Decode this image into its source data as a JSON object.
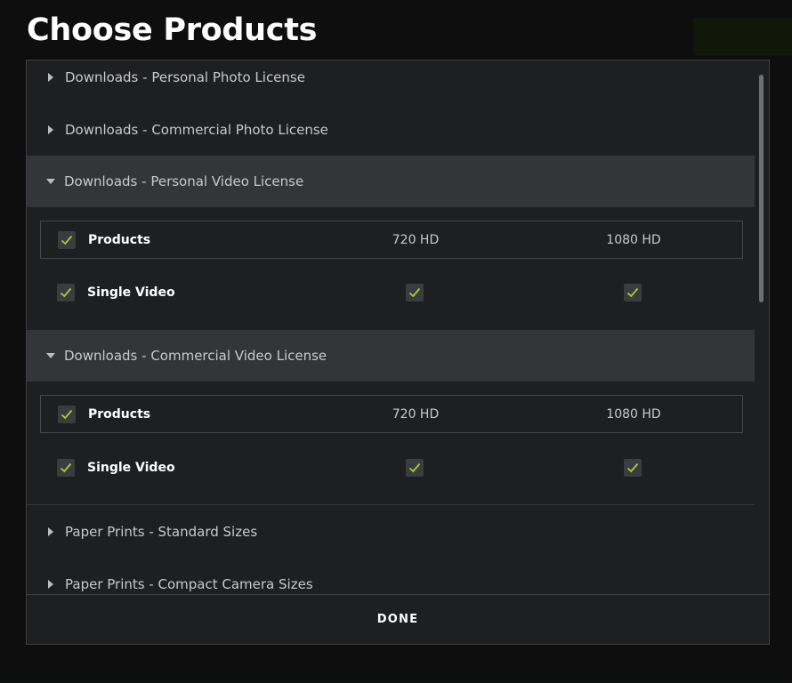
{
  "modal": {
    "title": "Choose Products",
    "done_label": "DONE"
  },
  "sections": [
    {
      "label": "Downloads - Personal Photo License",
      "expanded": false
    },
    {
      "label": "Downloads - Commercial Photo License",
      "expanded": false
    },
    {
      "label": "Downloads - Personal Video License",
      "expanded": true,
      "table": {
        "header": {
          "label": "Products",
          "col1": "720 HD",
          "col2": "1080 HD",
          "checked": true
        },
        "rows": [
          {
            "label": "Single Video",
            "checked": true,
            "col1_checked": true,
            "col2_checked": true
          }
        ]
      }
    },
    {
      "label": "Downloads - Commercial Video License",
      "expanded": true,
      "table": {
        "header": {
          "label": "Products",
          "col1": "720 HD",
          "col2": "1080 HD",
          "checked": true
        },
        "rows": [
          {
            "label": "Single Video",
            "checked": true,
            "col1_checked": true,
            "col2_checked": true
          }
        ]
      }
    },
    {
      "label": "Paper Prints - Standard Sizes",
      "expanded": false
    },
    {
      "label": "Paper Prints - Compact Camera Sizes",
      "expanded": false
    }
  ],
  "colors": {
    "check_accent": "#a4d233",
    "header_open_bg": "#343538",
    "modal_bg": "#1e1f21"
  }
}
